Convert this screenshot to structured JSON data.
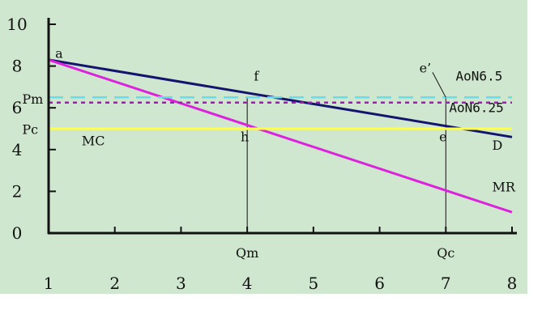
{
  "chart_data": {
    "type": "line",
    "background_color": "#cfe6cf",
    "xlim": [
      1,
      8
    ],
    "ylim": [
      0,
      10
    ],
    "x_ticks": [
      "1",
      "2",
      "3",
      "4",
      "5",
      "6",
      "7",
      "8"
    ],
    "y_ticks": [
      "0",
      "2",
      "4",
      "6",
      "8",
      "10"
    ],
    "series": [
      {
        "name": "D",
        "color": "#14146e",
        "style": "solid",
        "points": [
          [
            1,
            8.3
          ],
          [
            8,
            4.6
          ]
        ]
      },
      {
        "name": "MR",
        "color": "#dd22dd",
        "style": "solid",
        "points": [
          [
            1,
            8.3
          ],
          [
            8,
            1.0
          ]
        ]
      },
      {
        "name": "MC",
        "color": "#ffff44",
        "style": "solid",
        "points": [
          [
            1,
            5.0
          ],
          [
            8,
            5.0
          ]
        ]
      },
      {
        "name": "",
        "color": "#66ddee",
        "style": "dashed",
        "points": [
          [
            1,
            6.5
          ],
          [
            8,
            6.5
          ]
        ]
      },
      {
        "name": "",
        "color": "#9922aa",
        "style": "dotted",
        "points": [
          [
            1,
            6.25
          ],
          [
            8,
            6.25
          ]
        ]
      }
    ],
    "vertical_lines": [
      {
        "x": 4,
        "y_top": 6.5,
        "label": "Qm"
      },
      {
        "x": 7,
        "y_top": 6.5,
        "label": "Qc"
      }
    ],
    "annotations": [
      {
        "text": "a",
        "x": 1.1,
        "y": 8.4
      },
      {
        "text": "f",
        "x": 4.1,
        "y": 7.3
      },
      {
        "text": "h",
        "x": 3.9,
        "y": 4.4
      },
      {
        "text": "e",
        "x": 6.9,
        "y": 4.4
      },
      {
        "text": "e’",
        "x": 6.6,
        "y": 7.7
      },
      {
        "text": "D",
        "x": 7.7,
        "y": 4.0
      },
      {
        "text": "MR",
        "x": 7.7,
        "y": 2.0
      },
      {
        "text": "MC",
        "x": 1.5,
        "y": 4.2
      },
      {
        "text": "Pm",
        "x": 0.6,
        "y": 6.2
      },
      {
        "text": "Pc",
        "x": 0.6,
        "y": 4.75
      },
      {
        "text": "AoN6.5",
        "x": 7.15,
        "y": 7.3
      },
      {
        "text": "AoN6.25",
        "x": 7.05,
        "y": 5.8
      }
    ],
    "leader_line": {
      "from": [
        6.8,
        7.7
      ],
      "to": [
        7,
        6.5
      ]
    },
    "grid": false,
    "title": "",
    "xlabel": "",
    "ylabel": ""
  }
}
